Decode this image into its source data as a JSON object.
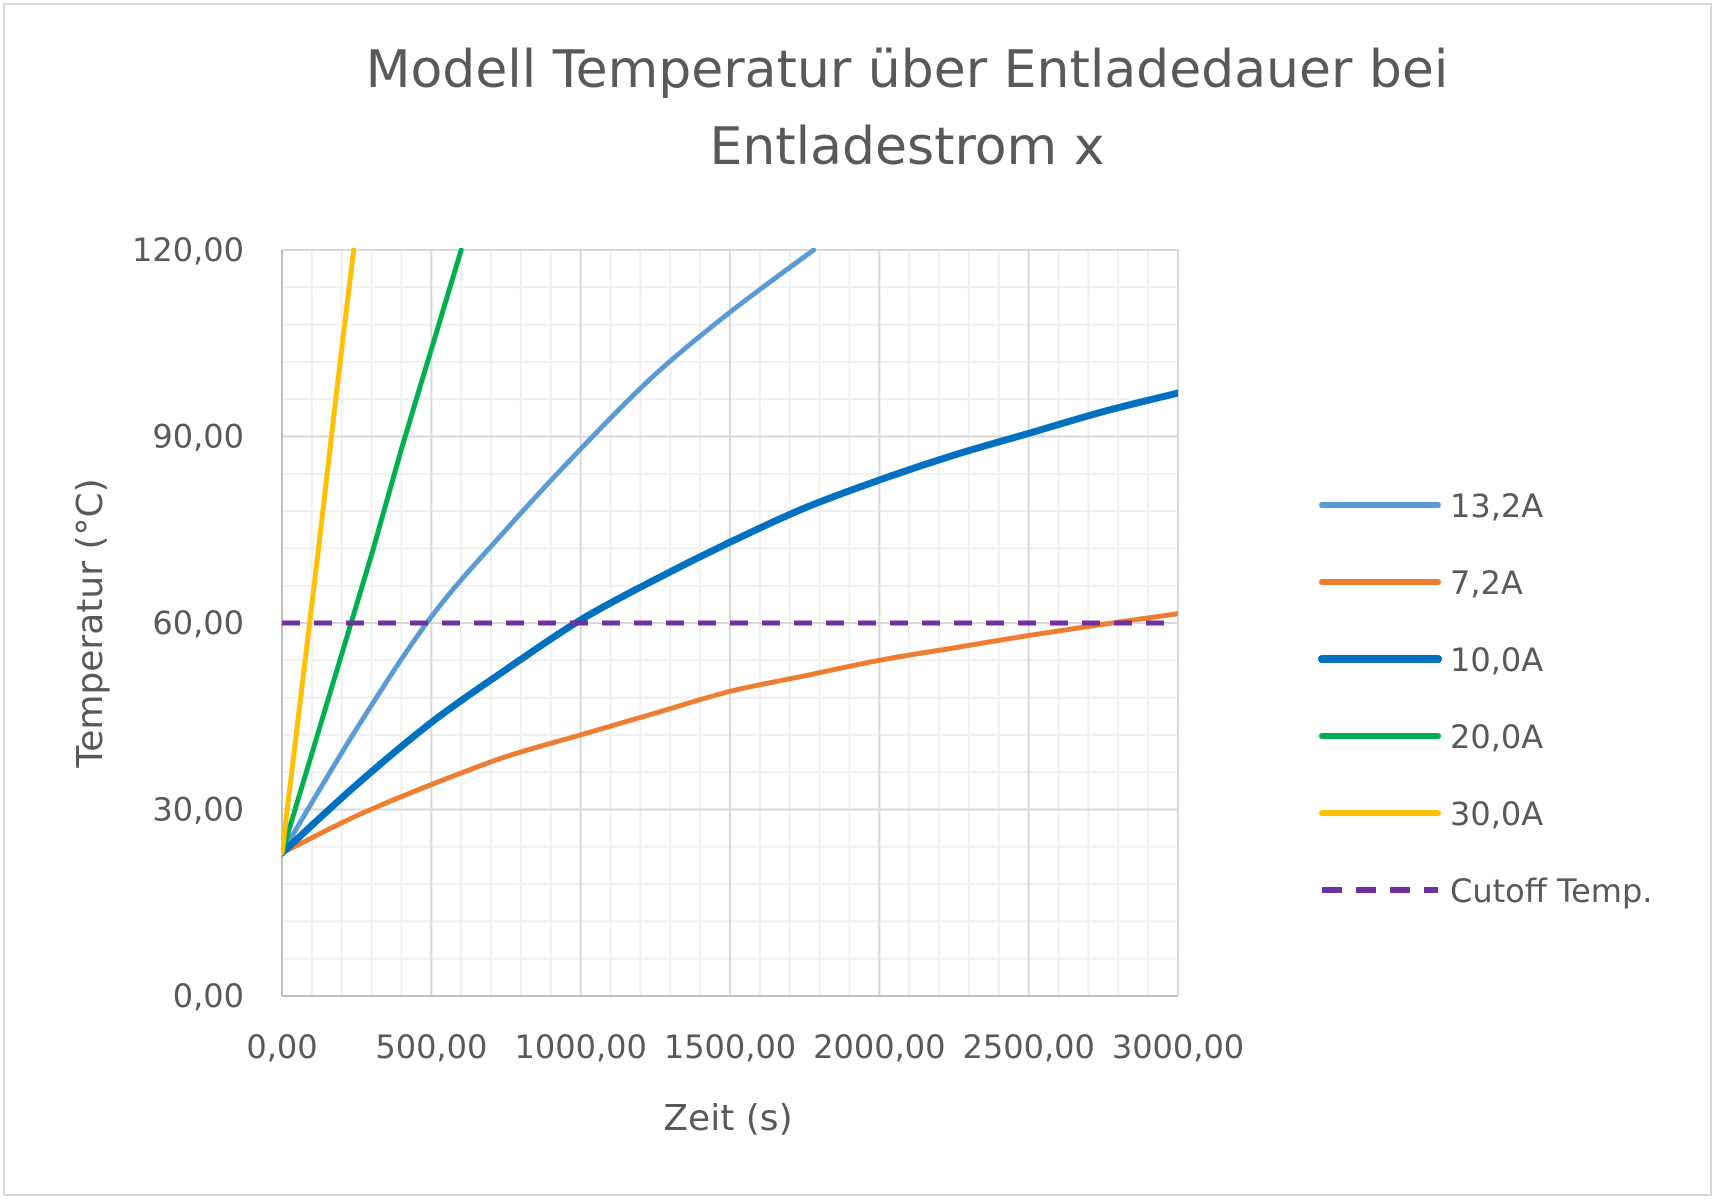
{
  "chart_data": {
    "type": "line",
    "title": "Modell Temperatur über Entladedauer bei Entladestrom x",
    "title_lines": [
      "Modell Temperatur über Entladedauer bei",
      "Entladestrom x"
    ],
    "xlabel": "Zeit (s)",
    "ylabel": "Temperatur (°C)",
    "xlim": [
      0,
      3000
    ],
    "ylim": [
      0,
      120
    ],
    "x_ticks": [
      0,
      500,
      1000,
      1500,
      2000,
      2500,
      3000
    ],
    "y_ticks": [
      0,
      30,
      60,
      90,
      120
    ],
    "x_tick_labels": [
      "0,00",
      "500,00",
      "1000,00",
      "1500,00",
      "2000,00",
      "2500,00",
      "3000,00"
    ],
    "y_tick_labels": [
      "0,00",
      "30,00",
      "60,00",
      "90,00",
      "120,00"
    ],
    "grid": true,
    "legend_position": "right",
    "series": [
      {
        "name": "13,2A",
        "color": "#5b9bd5",
        "style": "solid",
        "x": [
          0,
          250,
          500,
          750,
          1000,
          1250,
          1500,
          1780
        ],
        "y": [
          23,
          43,
          61,
          75,
          88,
          100,
          110,
          120
        ]
      },
      {
        "name": "7,2A",
        "color": "#ed7d31",
        "style": "solid",
        "x": [
          0,
          250,
          500,
          750,
          1000,
          1250,
          1500,
          1750,
          2000,
          2250,
          2500,
          2750,
          3000
        ],
        "y": [
          23,
          29,
          34,
          38.5,
          42,
          45.5,
          49,
          51.5,
          54,
          56,
          58,
          59.8,
          61.5
        ]
      },
      {
        "name": "10,0A",
        "color": "#0070c0",
        "style": "solid",
        "x": [
          0,
          250,
          500,
          750,
          1000,
          1250,
          1500,
          1750,
          2000,
          2250,
          2500,
          2750,
          3000
        ],
        "y": [
          23,
          34,
          44,
          52.5,
          60.5,
          67,
          73,
          78.5,
          83,
          87,
          90.5,
          94,
          97
        ]
      },
      {
        "name": "20,0A",
        "color": "#00b050",
        "style": "solid",
        "x": [
          0,
          100,
          200,
          300,
          400,
          500,
          600
        ],
        "y": [
          23,
          39,
          55,
          71,
          88,
          104,
          120
        ]
      },
      {
        "name": "30,0A",
        "color": "#ffc000",
        "style": "solid",
        "x": [
          0,
          60,
          120,
          180,
          240
        ],
        "y": [
          23,
          47,
          71,
          96,
          120
        ]
      },
      {
        "name": "Cutoff Temp.",
        "color": "#7030a0",
        "style": "dashed",
        "x": [
          0,
          3000
        ],
        "y": [
          60,
          60
        ]
      }
    ]
  }
}
